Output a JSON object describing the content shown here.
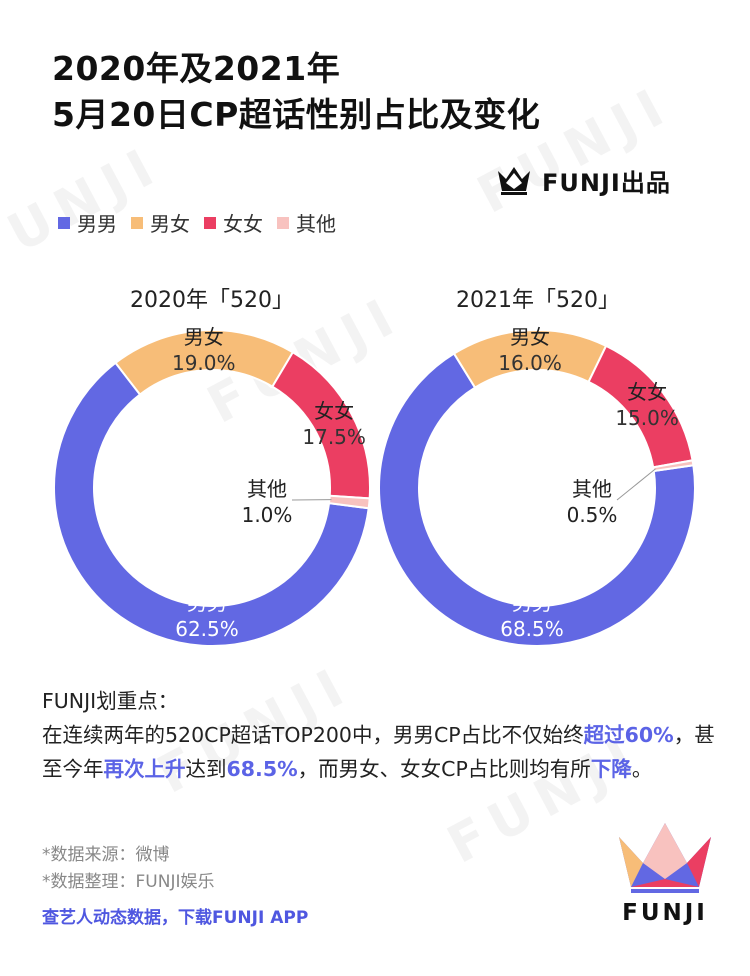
{
  "title": {
    "line1": "2020年及2021年",
    "line2": "5月20日CP超话性别占比及变化"
  },
  "brand": {
    "text": "FUNJI出品"
  },
  "watermark": "FUNJI",
  "legend": [
    {
      "label": "男男",
      "color": "#6268e3"
    },
    {
      "label": "男女",
      "color": "#f7bd78"
    },
    {
      "label": "女女",
      "color": "#eb3e62"
    },
    {
      "label": "其他",
      "color": "#f8c2bf"
    }
  ],
  "chart_data": [
    {
      "type": "pie",
      "title": "2020年「520」",
      "categories": [
        "男男",
        "男女",
        "女女",
        "其他"
      ],
      "values": [
        62.5,
        19.0,
        17.5,
        1.0
      ],
      "value_labels": [
        "62.5%",
        "19.0%",
        "17.5%",
        "1.0%"
      ],
      "colors": [
        "#6268e3",
        "#f7bd78",
        "#eb3e62",
        "#f8c2bf"
      ]
    },
    {
      "type": "pie",
      "title": "2021年「520」",
      "categories": [
        "男男",
        "男女",
        "女女",
        "其他"
      ],
      "values": [
        68.5,
        16.0,
        15.0,
        0.5
      ],
      "value_labels": [
        "68.5%",
        "16.0%",
        "15.0%",
        "0.5%"
      ],
      "colors": [
        "#6268e3",
        "#f7bd78",
        "#eb3e62",
        "#f8c2bf"
      ]
    }
  ],
  "notes": {
    "heading": "FUNJI划重点：",
    "p1": "在连续两年的520CP超话TOP200中，男男CP占比不仅始终",
    "hl1": "超过60%",
    "p2": "，甚至今年",
    "hl2": "再次上升",
    "p3": "达到",
    "hl3": "68.5%",
    "p4": "，而男女、女女CP占比则均有所",
    "hl4": "下降",
    "p5": "。"
  },
  "meta": {
    "source": "*数据来源：微博",
    "compiled": "*数据整理：FUNJI娱乐"
  },
  "cta": "查艺人动态数据，下载FUNJI APP",
  "logo": {
    "text": "FUNJI"
  }
}
